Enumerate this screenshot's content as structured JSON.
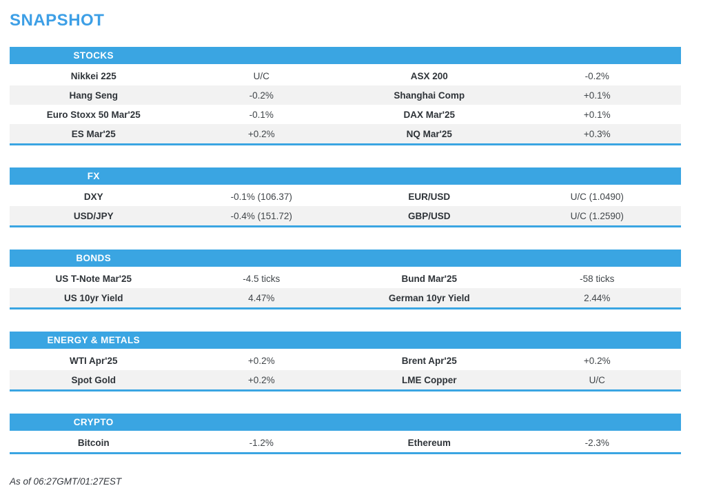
{
  "page": {
    "title": "SNAPSHOT",
    "footer": "As of 06:27GMT/01:27EST"
  },
  "colors": {
    "accent_blue": "#3aa5e2",
    "title_blue": "#3d9fe6",
    "row_alt_bg": "#f2f2f2",
    "label_text": "#2e3338",
    "value_text": "#404549"
  },
  "sections": [
    {
      "label": "STOCKS",
      "rows": [
        [
          {
            "name": "Nikkei 225",
            "value": "U/C"
          },
          {
            "name": "ASX 200",
            "value": "-0.2%"
          }
        ],
        [
          {
            "name": "Hang Seng",
            "value": "-0.2%"
          },
          {
            "name": "Shanghai Comp",
            "value": "+0.1%"
          }
        ],
        [
          {
            "name": "Euro Stoxx 50 Mar'25",
            "value": "-0.1%"
          },
          {
            "name": "DAX Mar'25",
            "value": "+0.1%"
          }
        ],
        [
          {
            "name": "ES Mar'25",
            "value": "+0.2%"
          },
          {
            "name": "NQ Mar'25",
            "value": "+0.3%"
          }
        ]
      ]
    },
    {
      "label": "FX",
      "rows": [
        [
          {
            "name": "DXY",
            "value": "-0.1% (106.37)"
          },
          {
            "name": "EUR/USD",
            "value": "U/C (1.0490)"
          }
        ],
        [
          {
            "name": "USD/JPY",
            "value": "-0.4% (151.72)"
          },
          {
            "name": "GBP/USD",
            "value": "U/C (1.2590)"
          }
        ]
      ]
    },
    {
      "label": "BONDS",
      "rows": [
        [
          {
            "name": "US T-Note Mar'25",
            "value": "-4.5 ticks"
          },
          {
            "name": "Bund Mar'25",
            "value": "-58 ticks"
          }
        ],
        [
          {
            "name": "US 10yr Yield",
            "value": "4.47%"
          },
          {
            "name": "German 10yr Yield",
            "value": "2.44%"
          }
        ]
      ]
    },
    {
      "label": "ENERGY & METALS",
      "rows": [
        [
          {
            "name": "WTI Apr'25",
            "value": "+0.2%"
          },
          {
            "name": "Brent Apr'25",
            "value": "+0.2%"
          }
        ],
        [
          {
            "name": "Spot Gold",
            "value": "+0.2%"
          },
          {
            "name": "LME Copper",
            "value": "U/C"
          }
        ]
      ]
    },
    {
      "label": "CRYPTO",
      "rows": [
        [
          {
            "name": "Bitcoin",
            "value": "-1.2%"
          },
          {
            "name": "Ethereum",
            "value": "-2.3%"
          }
        ]
      ]
    }
  ]
}
